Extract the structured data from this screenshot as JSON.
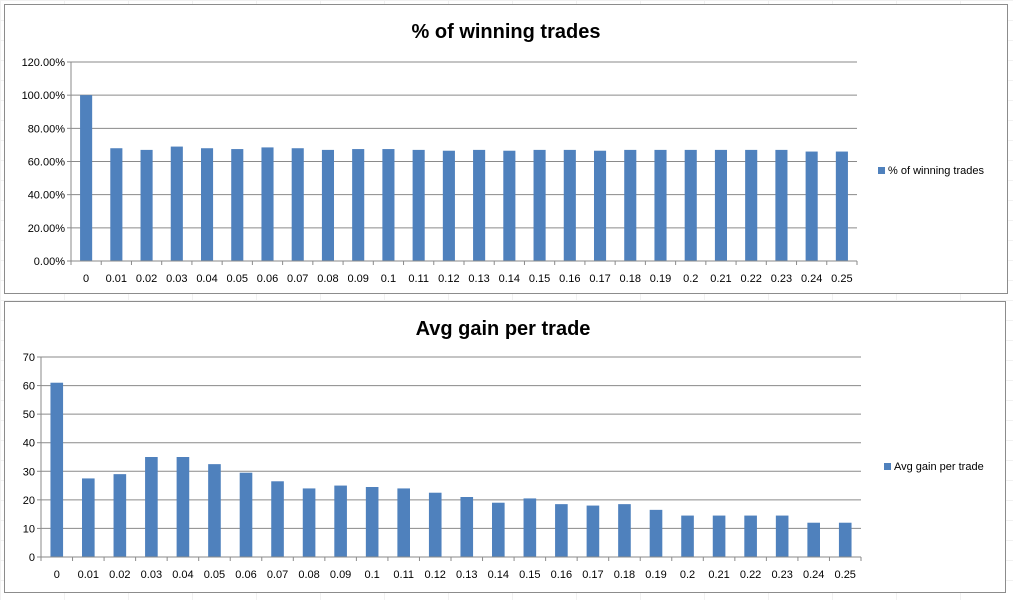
{
  "charts": [
    {
      "chart_data": {
        "type": "bar",
        "title": "% of winning trades",
        "categories": [
          "0",
          "0.01",
          "0.02",
          "0.03",
          "0.04",
          "0.05",
          "0.06",
          "0.07",
          "0.08",
          "0.09",
          "0.1",
          "0.11",
          "0.12",
          "0.13",
          "0.14",
          "0.15",
          "0.16",
          "0.17",
          "0.18",
          "0.19",
          "0.2",
          "0.21",
          "0.22",
          "0.23",
          "0.24",
          "0.25"
        ],
        "series": [
          {
            "name": "% of winning trades",
            "values": [
              100.0,
              68.0,
              67.0,
              69.0,
              68.0,
              67.5,
              68.5,
              68.0,
              67.0,
              67.5,
              67.5,
              67.0,
              66.5,
              67.0,
              66.5,
              67.0,
              67.0,
              66.5,
              67.0,
              67.0,
              67.0,
              67.0,
              67.0,
              67.0,
              66.0,
              66.0
            ]
          }
        ],
        "yticks": [
          "0.00%",
          "20.00%",
          "40.00%",
          "60.00%",
          "80.00%",
          "100.00%",
          "120.00%"
        ],
        "ylim": [
          0,
          120
        ],
        "grid": true,
        "legend_position": "right",
        "bar_color": "#4F81BD"
      }
    },
    {
      "chart_data": {
        "type": "bar",
        "title": "Avg gain per trade",
        "categories": [
          "0",
          "0.01",
          "0.02",
          "0.03",
          "0.04",
          "0.05",
          "0.06",
          "0.07",
          "0.08",
          "0.09",
          "0.1",
          "0.11",
          "0.12",
          "0.13",
          "0.14",
          "0.15",
          "0.16",
          "0.17",
          "0.18",
          "0.19",
          "0.2",
          "0.21",
          "0.22",
          "0.23",
          "0.24",
          "0.25"
        ],
        "series": [
          {
            "name": "Avg gain per trade",
            "values": [
              61,
              27.5,
              29,
              35,
              35,
              32.5,
              29.5,
              26.5,
              24,
              25,
              24.5,
              24,
              22.5,
              21,
              19,
              20.5,
              18.5,
              18,
              18.5,
              16.5,
              14.5,
              14.5,
              14.5,
              14.5,
              12,
              12
            ]
          }
        ],
        "yticks": [
          "0",
          "10",
          "20",
          "30",
          "40",
          "50",
          "60",
          "70"
        ],
        "ylim": [
          0,
          70
        ],
        "grid": true,
        "legend_position": "right",
        "bar_color": "#4F81BD"
      }
    }
  ]
}
